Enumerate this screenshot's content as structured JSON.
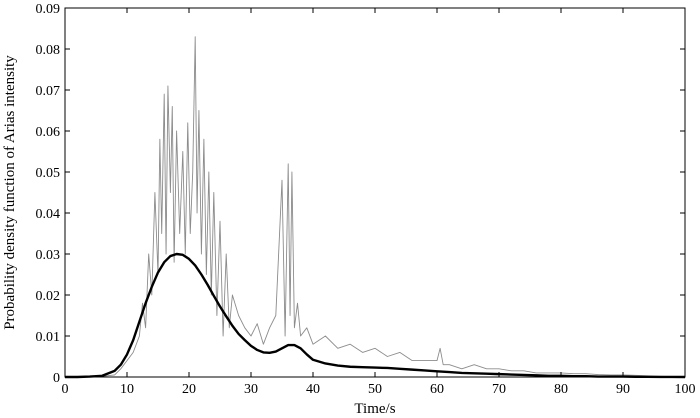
{
  "chart_data": {
    "type": "line",
    "title": "",
    "xlabel": "Time/s",
    "ylabel": "Probability density function of Arias intensity",
    "xlim": [
      0,
      100
    ],
    "ylim": [
      0,
      0.09
    ],
    "x_ticks": [
      0,
      10,
      20,
      30,
      40,
      50,
      60,
      70,
      80,
      90,
      100
    ],
    "y_ticks": [
      0,
      0.01,
      0.02,
      0.03,
      0.04,
      0.05,
      0.06,
      0.07,
      0.08,
      0.09
    ],
    "x_tick_labels": [
      "0",
      "10",
      "20",
      "30",
      "40",
      "50",
      "60",
      "70",
      "80",
      "90",
      "100"
    ],
    "y_tick_labels": [
      "0",
      "0.01",
      "0.02",
      "0.03",
      "0.04",
      "0.05",
      "0.06",
      "0.07",
      "0.08",
      "0.09"
    ],
    "grid": false,
    "legend": "none",
    "series": [
      {
        "color": "#8c8c8c",
        "line_width": "thin",
        "x": [
          0,
          5,
          8,
          9,
          10,
          11,
          12,
          12.5,
          13,
          13.5,
          14,
          14.5,
          15,
          15.3,
          15.6,
          16,
          16.3,
          16.6,
          17,
          17.3,
          17.6,
          18,
          18.5,
          19,
          19.4,
          19.8,
          20.2,
          20.6,
          21,
          21.3,
          21.6,
          22,
          22.4,
          22.8,
          23.2,
          23.6,
          24,
          24.5,
          25,
          25.5,
          26,
          26.5,
          27,
          28,
          29,
          30,
          31,
          32,
          33,
          34,
          35,
          35.5,
          36,
          36.3,
          36.6,
          37,
          37.5,
          38,
          39,
          40,
          42,
          44,
          46,
          48,
          50,
          52,
          54,
          56,
          58,
          60,
          60.5,
          61,
          62,
          64,
          66,
          68,
          70,
          72,
          74,
          76,
          78,
          80,
          82,
          84,
          86,
          88,
          90,
          92,
          95,
          100
        ],
        "y": [
          0,
          0,
          0.0005,
          0.002,
          0.004,
          0.006,
          0.01,
          0.018,
          0.012,
          0.03,
          0.02,
          0.045,
          0.025,
          0.058,
          0.035,
          0.069,
          0.03,
          0.071,
          0.045,
          0.066,
          0.028,
          0.06,
          0.035,
          0.055,
          0.03,
          0.062,
          0.035,
          0.05,
          0.083,
          0.04,
          0.065,
          0.03,
          0.058,
          0.025,
          0.05,
          0.02,
          0.045,
          0.015,
          0.038,
          0.01,
          0.03,
          0.012,
          0.02,
          0.015,
          0.012,
          0.01,
          0.013,
          0.008,
          0.012,
          0.015,
          0.048,
          0.01,
          0.052,
          0.015,
          0.05,
          0.012,
          0.018,
          0.01,
          0.012,
          0.008,
          0.01,
          0.007,
          0.008,
          0.006,
          0.007,
          0.005,
          0.006,
          0.004,
          0.004,
          0.004,
          0.007,
          0.003,
          0.003,
          0.002,
          0.003,
          0.002,
          0.002,
          0.0015,
          0.0015,
          0.001,
          0.001,
          0.001,
          0.0008,
          0.0008,
          0.0006,
          0.0005,
          0.0005,
          0.0004,
          0.0002,
          0
        ]
      },
      {
        "color": "#000000",
        "line_width": "thick",
        "x": [
          0,
          2,
          4,
          6,
          8,
          9,
          10,
          11,
          12,
          13,
          14,
          15,
          16,
          17,
          18,
          19,
          20,
          21,
          22,
          23,
          24,
          25,
          26,
          27,
          28,
          29,
          30,
          31,
          32,
          33,
          34,
          35,
          36,
          37,
          38,
          39,
          40,
          42,
          44,
          46,
          48,
          50,
          52,
          54,
          56,
          58,
          60,
          62,
          64,
          66,
          68,
          70,
          72,
          74,
          76,
          78,
          80,
          82,
          84,
          86,
          88,
          90,
          92,
          94,
          96,
          98,
          100
        ],
        "y": [
          0,
          0,
          0.0001,
          0.0003,
          0.0015,
          0.003,
          0.0055,
          0.009,
          0.0135,
          0.018,
          0.022,
          0.0255,
          0.028,
          0.0295,
          0.03,
          0.0298,
          0.0288,
          0.0272,
          0.025,
          0.0225,
          0.0198,
          0.0172,
          0.0148,
          0.0125,
          0.0105,
          0.009,
          0.0076,
          0.0066,
          0.006,
          0.0059,
          0.0062,
          0.007,
          0.0078,
          0.0078,
          0.007,
          0.0055,
          0.0042,
          0.0033,
          0.0028,
          0.0025,
          0.0024,
          0.0023,
          0.0022,
          0.002,
          0.0018,
          0.0016,
          0.0014,
          0.0012,
          0.001,
          0.0009,
          0.0008,
          0.0007,
          0.0006,
          0.0005,
          0.0004,
          0.0003,
          0.0003,
          0.0002,
          0.0002,
          0.0001,
          0.0001,
          0.0001,
          5e-05,
          5e-05,
          2e-05,
          1e-05,
          0
        ]
      }
    ]
  }
}
